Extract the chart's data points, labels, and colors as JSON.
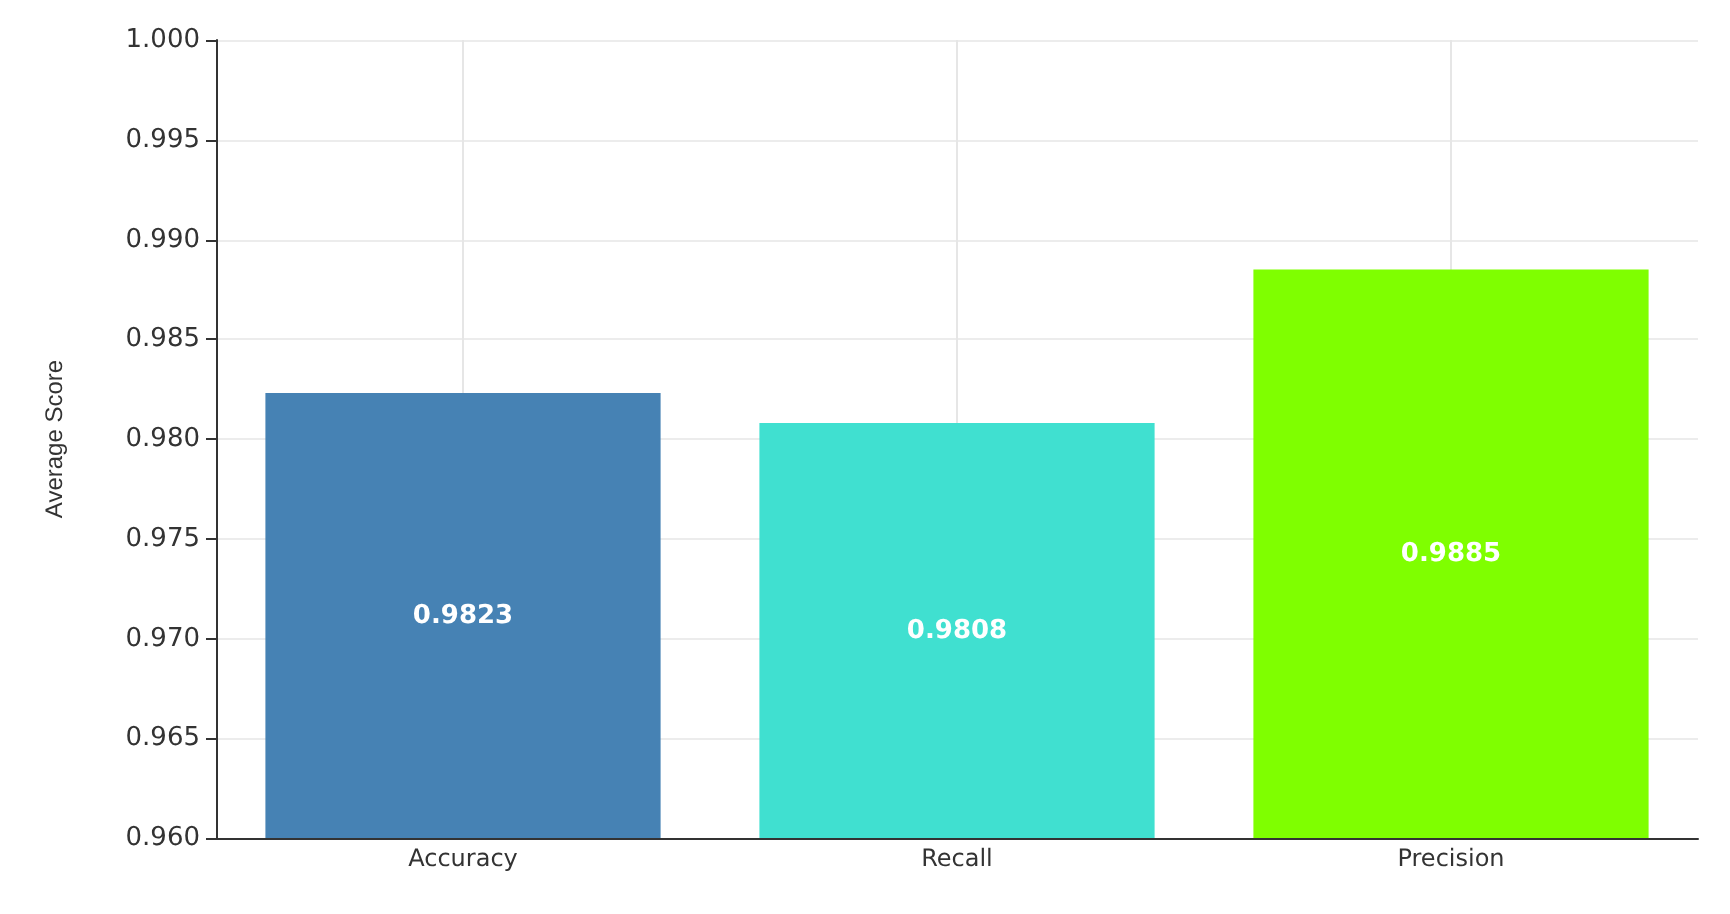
{
  "chart_data": {
    "type": "bar",
    "ylabel": "Average Score",
    "categories": [
      "Accuracy",
      "Recall",
      "Precision"
    ],
    "values": [
      0.9823,
      0.9808,
      0.9885
    ],
    "colors": [
      "#4682b4",
      "#40e0d0",
      "#7fff00"
    ],
    "ylim": [
      0.96,
      1.0
    ],
    "yticks": [
      {
        "value": 0.96,
        "label": "0.960"
      },
      {
        "value": 0.965,
        "label": "0.965"
      },
      {
        "value": 0.97,
        "label": "0.970"
      },
      {
        "value": 0.975,
        "label": "0.975"
      },
      {
        "value": 0.98,
        "label": "0.980"
      },
      {
        "value": 0.985,
        "label": "0.985"
      },
      {
        "value": 0.99,
        "label": "0.990"
      },
      {
        "value": 0.995,
        "label": "0.995"
      },
      {
        "value": 1.0,
        "label": "1.000"
      }
    ],
    "grid": true,
    "data_labels": true
  }
}
